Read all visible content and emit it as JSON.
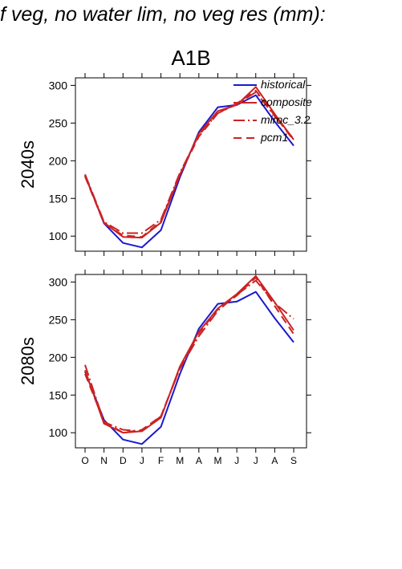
{
  "header_text": "f veg, no water lim, no veg res (mm):",
  "chart_data": {
    "type": "line",
    "title": "A1B",
    "categories": [
      "O",
      "N",
      "D",
      "J",
      "F",
      "M",
      "A",
      "M",
      "J",
      "J",
      "A",
      "S"
    ],
    "xlabel": "",
    "legend": {
      "placement": "top-right"
    },
    "styles": {
      "historical": {
        "color": "#1a1acc",
        "dash": ""
      },
      "composite": {
        "color": "#cc2222",
        "dash": ""
      },
      "miroc_3.2": {
        "color": "#cc2222",
        "dash": "14 4 2 4"
      },
      "pcm1": {
        "color": "#cc2222",
        "dash": "10 6"
      }
    },
    "panels": [
      {
        "ylabel": "2040s",
        "ylim": [
          80,
          310
        ],
        "yticks": [
          100,
          150,
          200,
          250,
          300
        ],
        "series": [
          {
            "name": "historical",
            "values": [
              181,
              117,
              91,
              85,
              108,
              178,
              238,
              271,
              274,
              287,
              252,
              220
            ]
          },
          {
            "name": "composite",
            "values": [
              180,
              118,
              99,
              98,
              118,
              181,
              236,
              266,
              274,
              298,
              262,
              228
            ]
          },
          {
            "name": "miroc_3.2",
            "values": [
              182,
              119,
              104,
              104,
              122,
              184,
              234,
              263,
              275,
              291,
              259,
              229
            ]
          },
          {
            "name": "pcm1",
            "values": [
              179,
              117,
              101,
              99,
              120,
              182,
              232,
              263,
              276,
              293,
              260,
              227
            ]
          }
        ]
      },
      {
        "ylabel": "2080s",
        "ylim": [
          80,
          310
        ],
        "yticks": [
          100,
          150,
          200,
          250,
          300
        ],
        "series": [
          {
            "name": "historical",
            "values": [
              181,
              117,
              91,
              85,
              108,
              178,
              238,
              271,
              274,
              287,
              252,
              220
            ]
          },
          {
            "name": "composite",
            "values": [
              183,
              112,
              100,
              102,
              120,
              188,
              234,
              265,
              284,
              308,
              273,
              236
            ]
          },
          {
            "name": "miroc_3.2",
            "values": [
              190,
              114,
              104,
              102,
              122,
              185,
              228,
              262,
              283,
              302,
              272,
              251
            ]
          },
          {
            "name": "pcm1",
            "values": [
              178,
              115,
              100,
              104,
              122,
              186,
              232,
              264,
              282,
              306,
              268,
              231
            ]
          }
        ]
      }
    ]
  }
}
